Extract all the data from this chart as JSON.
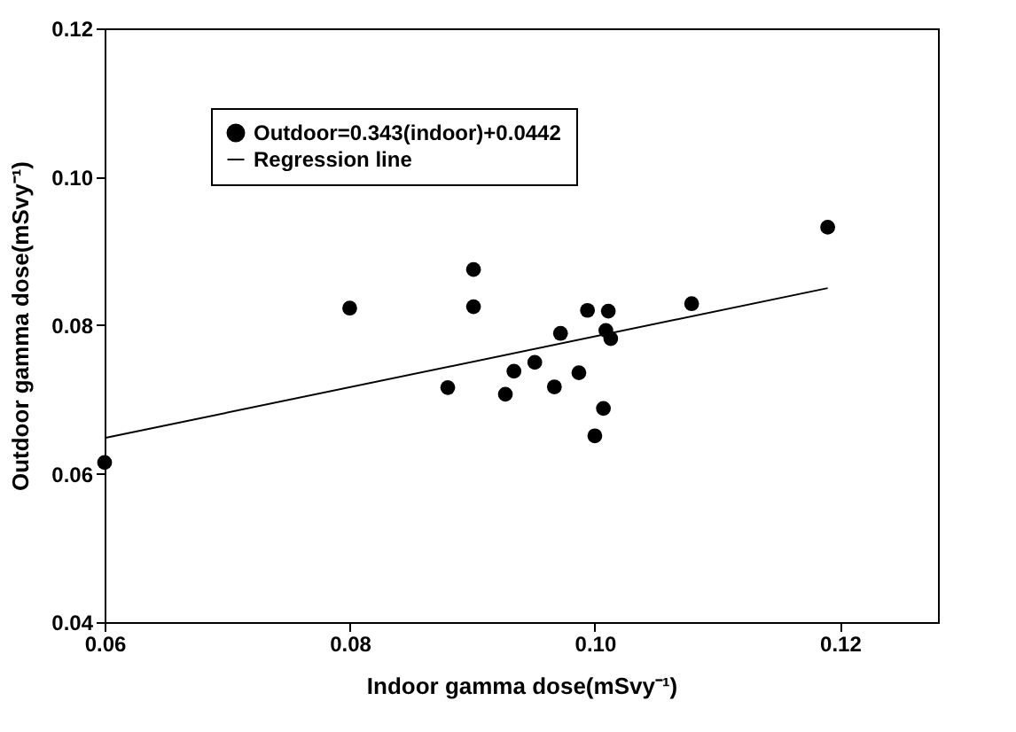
{
  "chart_data": {
    "type": "scatter",
    "xlabel": "Indoor gamma dose(mSvy⁻¹)",
    "ylabel": "Outdoor gamma dose(mSvy⁻¹)",
    "xlim": [
      0.06,
      0.128
    ],
    "ylim": [
      0.04,
      0.12
    ],
    "xticks": [
      0.06,
      0.08,
      {
        "value": 0.1,
        "label": "0.10"
      },
      0.12
    ],
    "yticks": [
      0.04,
      0.06,
      0.08,
      {
        "value": 0.1,
        "label": "0.10"
      },
      0.12
    ],
    "grid": false,
    "legend": "top left",
    "marker": "circle",
    "series": [
      {
        "name": "Outdoor=0.343(indoor)+0.0442",
        "color": "#000000",
        "x": [
          0.06,
          0.08,
          0.0901,
          0.0901,
          0.088,
          0.0927,
          0.0934,
          0.0951,
          0.0967,
          0.0972,
          0.0987,
          0.0994,
          0.1,
          0.1007,
          0.1011,
          0.1009,
          0.1013,
          0.1079,
          0.119
        ],
        "values": [
          0.0615,
          0.0823,
          0.0875,
          0.0825,
          0.0716,
          0.0707,
          0.0738,
          0.075,
          0.0717,
          0.0789,
          0.0736,
          0.082,
          0.0651,
          0.0688,
          0.0819,
          0.0793,
          0.0782,
          0.0829,
          0.0932
        ]
      },
      {
        "name": "Regression line",
        "type": "line",
        "color": "#000000",
        "line_style": "solid",
        "marker": "none",
        "x": [
          0.06,
          0.119
        ],
        "values": [
          0.0648,
          0.085
        ]
      }
    ]
  }
}
